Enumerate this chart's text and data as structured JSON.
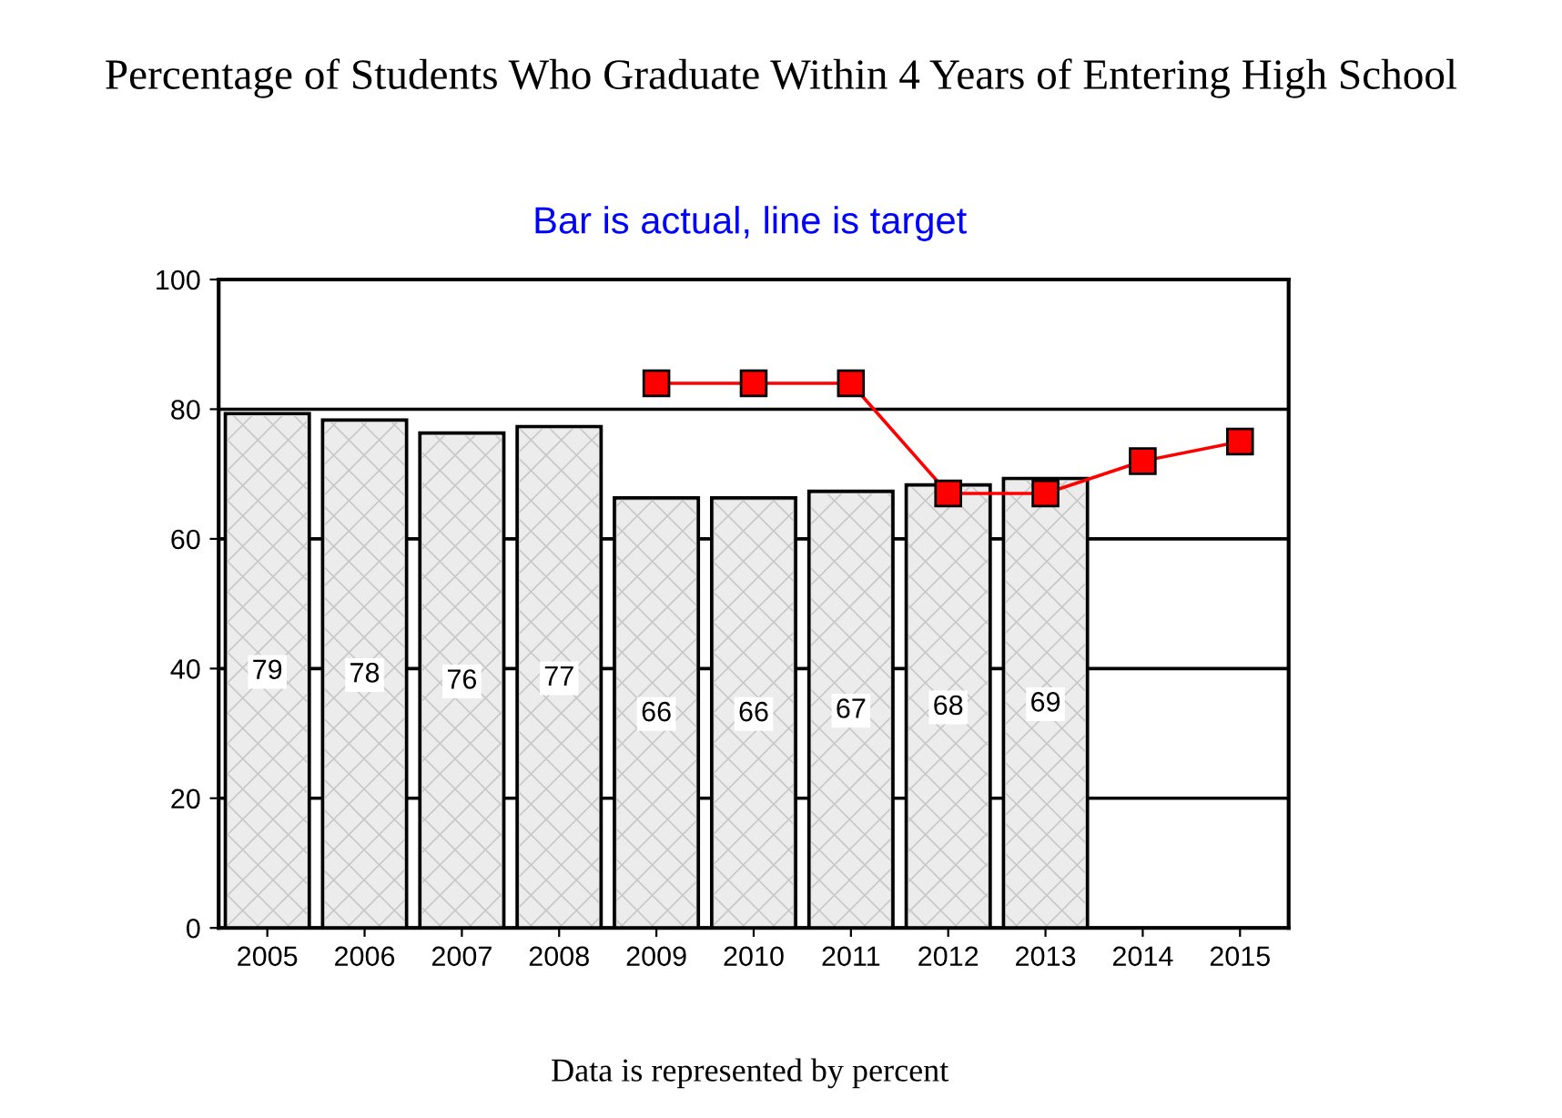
{
  "chart_data": {
    "type": "bar",
    "title": "Percentage of Students Who Graduate Within 4 Years of Entering High School",
    "subtitle": "Bar is actual, line is target",
    "categories": [
      "2005",
      "2006",
      "2007",
      "2008",
      "2009",
      "2010",
      "2011",
      "2012",
      "2013",
      "2014",
      "2015"
    ],
    "series": [
      {
        "color": "#ececec",
        "values": [
          79,
          78,
          76,
          77,
          66,
          66,
          67,
          68,
          69,
          null,
          null
        ],
        "value_labels": [
          "79",
          "78",
          "76",
          "77",
          "66",
          "66",
          "67",
          "68",
          "69",
          null,
          null
        ]
      },
      {
        "type": "line",
        "color": "#ff0000",
        "marker": "square",
        "values": [
          null,
          null,
          null,
          null,
          84,
          84,
          84,
          67,
          67,
          72,
          75
        ]
      }
    ],
    "ylim": [
      0,
      100
    ],
    "yticks": [
      0,
      20,
      40,
      60,
      80,
      100
    ],
    "grid": "y",
    "legend": false,
    "annotations": [
      "Data is represented by percent"
    ]
  }
}
